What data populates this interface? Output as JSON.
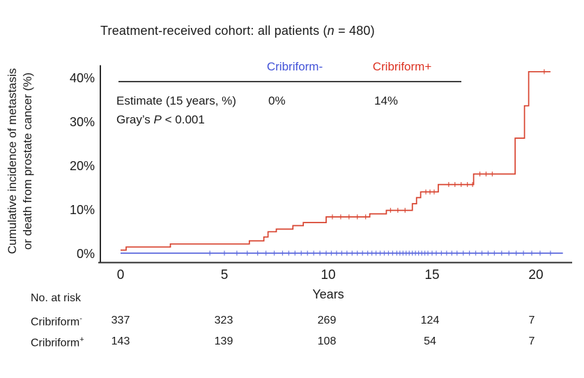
{
  "title": {
    "pre": "Treatment-received cohort: all patients (",
    "italic": "n",
    "post": " = 480)"
  },
  "y_axis": {
    "label_line1": "Cumulative incidence of metastasis",
    "label_line2": "or death from prostate cancer (%)",
    "ticks": [
      "40%",
      "30%",
      "20%",
      "10%",
      "0%"
    ]
  },
  "x_axis": {
    "label": "Years",
    "ticks": [
      "0",
      "5",
      "10",
      "15",
      "20"
    ]
  },
  "inset": {
    "col1_header": "Cribriform-",
    "col2_header": "Cribriform+",
    "estimate_label": "Estimate (15 years, %)",
    "estimate_col1": "0%",
    "estimate_col2": "14%",
    "grays_pre": "Gray’s ",
    "grays_italic": "P",
    "grays_post": " < 0.001"
  },
  "risk_table": {
    "caption": "No. at risk",
    "rows": [
      {
        "label": "Cribriform",
        "sup": "-",
        "values": [
          "337",
          "323",
          "269",
          "124",
          "7"
        ]
      },
      {
        "label": "Cribriform",
        "sup": "+",
        "values": [
          "143",
          "139",
          "108",
          "54",
          "7"
        ]
      }
    ]
  },
  "colors": {
    "cribriform_minus_text": "#4353d8",
    "cribriform_plus_text": "#dc3222",
    "cribriform_minus_line": "#5b68de",
    "cribriform_plus_line": "#d8432f",
    "axis": "#2d2d2d"
  },
  "chart_data": {
    "type": "line",
    "subtype": "cumulative-incidence-step",
    "title": "Treatment-received cohort: all patients (n = 480)",
    "xlabel": "Years",
    "ylabel": "Cumulative incidence of metastasis or death from prostate cancer (%)",
    "xlim": [
      0,
      21.7
    ],
    "ylim": [
      0,
      43
    ],
    "x_ticks": [
      0,
      5,
      10,
      15,
      20
    ],
    "y_ticks": [
      0,
      10,
      20,
      30,
      40
    ],
    "grid": false,
    "legend_position": "inset-table-top",
    "annotations": {
      "estimate_15yr_minus": "0%",
      "estimate_15yr_plus": "14%",
      "grays_p": "< 0.001"
    },
    "series": [
      {
        "name": "Cribriform+",
        "color": "#d8432f",
        "steps": [
          [
            0,
            0.7
          ],
          [
            0.27,
            1.4
          ],
          [
            2.4,
            2.1
          ],
          [
            6.2,
            2.8
          ],
          [
            6.9,
            3.7
          ],
          [
            7.1,
            4.9
          ],
          [
            7.5,
            5.5
          ],
          [
            8.3,
            6.3
          ],
          [
            8.8,
            7.0
          ],
          [
            9.9,
            8.3
          ],
          [
            12.0,
            9.0
          ],
          [
            12.8,
            9.8
          ],
          [
            14.05,
            11.3
          ],
          [
            14.25,
            12.7
          ],
          [
            14.45,
            14.0
          ],
          [
            15.3,
            15.7
          ],
          [
            17.0,
            18.1
          ],
          [
            19.0,
            26.3
          ],
          [
            19.45,
            33.7
          ],
          [
            19.65,
            41.5
          ]
        ],
        "end_x": 20.7,
        "censor_x": [
          10.2,
          10.6,
          11.0,
          11.4,
          11.8,
          13.0,
          13.35,
          13.7,
          14.7,
          14.9,
          15.1,
          15.8,
          16.1,
          16.4,
          16.7,
          16.95,
          17.3,
          17.6,
          17.9,
          20.4
        ]
      },
      {
        "name": "Cribriform-",
        "color": "#5b68de",
        "steps": [
          [
            0,
            0
          ]
        ],
        "end_x": 21.3,
        "censor_x": [
          4.3,
          5.0,
          5.6,
          6.1,
          6.6,
          7.0,
          7.4,
          7.8,
          8.1,
          8.4,
          8.7,
          9.0,
          9.3,
          9.6,
          9.9,
          10.15,
          10.4,
          10.65,
          10.9,
          11.15,
          11.4,
          11.65,
          11.9,
          12.1,
          12.3,
          12.5,
          12.7,
          12.9,
          13.1,
          13.3,
          13.45,
          13.6,
          13.75,
          13.9,
          14.05,
          14.2,
          14.35,
          14.5,
          14.65,
          14.8,
          15.0,
          15.2,
          15.45,
          15.7,
          15.95,
          16.2,
          16.5,
          16.8,
          17.1,
          17.4,
          17.7,
          18.0,
          18.35,
          18.7,
          19.05,
          19.4,
          19.8,
          20.2,
          20.7
        ]
      }
    ],
    "number_at_risk": {
      "times": [
        0,
        5,
        10,
        15,
        20
      ],
      "Cribriform-": [
        337,
        323,
        269,
        124,
        7
      ],
      "Cribriform+": [
        143,
        139,
        108,
        54,
        7
      ]
    }
  }
}
